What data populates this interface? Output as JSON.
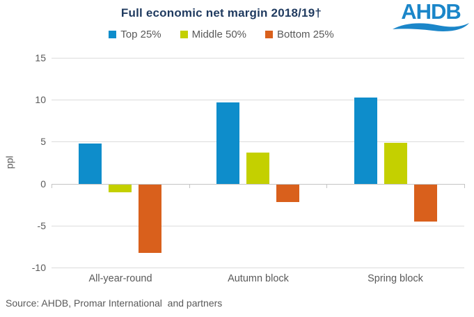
{
  "title": "Full economic net margin 2018/19†",
  "logo": {
    "text": "AHDB",
    "color": "#1B86C9"
  },
  "source": "Source: AHDB, Promar International  and partners",
  "ylabel": "ppl",
  "chart_data": {
    "type": "bar",
    "categories": [
      "All-year-round",
      "Autumn block",
      "Spring block"
    ],
    "series": [
      {
        "name": "Top 25%",
        "color": "#0E8DCB",
        "values": [
          4.8,
          9.7,
          10.3
        ]
      },
      {
        "name": "Middle 50%",
        "color": "#C4D000",
        "values": [
          -0.9,
          3.7,
          4.9
        ]
      },
      {
        "name": "Bottom 25%",
        "color": "#D9601C",
        "values": [
          -8.1,
          -2.1,
          -4.4
        ]
      }
    ],
    "ylabel": "ppl",
    "yticks": [
      15,
      10,
      5,
      0,
      -5,
      -10
    ],
    "ylim": [
      -10,
      15
    ],
    "grid": true,
    "legend_position": "top"
  },
  "colors": {
    "gridline": "#DCDCDC",
    "axis": "#C4C4C4",
    "text": "#595959",
    "title": "#1F3A5F"
  }
}
